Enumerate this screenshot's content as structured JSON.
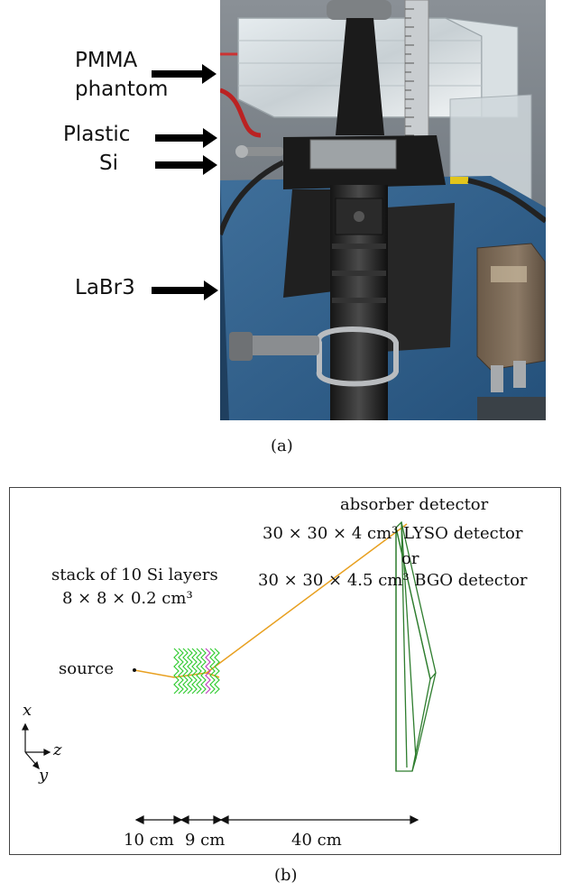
{
  "panel_a": {
    "labels": {
      "pmma_line1": "PMMA",
      "pmma_line2": "phantom",
      "plastic": "Plastic",
      "si": "Si",
      "labr3": "LaBr3"
    },
    "caption": "(a)"
  },
  "panel_b": {
    "absorber_title": "absorber detector",
    "lyso_line": "30 × 30 × 4 cm³ LYSO detector",
    "or_text": "or",
    "bgo_line": "30 × 30 × 4.5 cm³ BGO detector",
    "stack_line1": "stack of 10 Si layers",
    "stack_line2": "8 × 8 × 0.2 cm³",
    "source_label": "source",
    "axes": {
      "x": "x",
      "y": "y",
      "z": "z"
    },
    "distances": [
      "10 cm",
      "9 cm",
      "40 cm"
    ],
    "caption": "(b)"
  },
  "colors": {
    "beam": "#e8a020",
    "si_layers": "#33cc33",
    "highlight_layer": "#c040c0",
    "absorber": "#2e7d2e"
  }
}
